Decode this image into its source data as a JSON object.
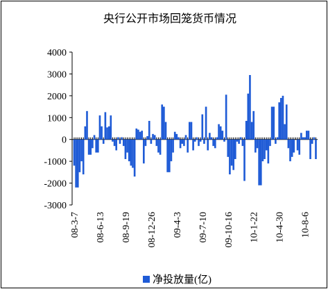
{
  "chart_data": {
    "type": "bar",
    "title": "央行公开市场回笼货币情况",
    "categories": [
      "08-3-7",
      null,
      null,
      null,
      null,
      null,
      null,
      null,
      null,
      null,
      null,
      null,
      null,
      null,
      "08-6-13",
      null,
      null,
      null,
      null,
      null,
      null,
      null,
      null,
      null,
      null,
      null,
      null,
      null,
      "08-9-19",
      null,
      null,
      null,
      null,
      null,
      null,
      null,
      null,
      null,
      null,
      null,
      null,
      null,
      "08-12-26",
      null,
      null,
      null,
      null,
      null,
      null,
      null,
      null,
      null,
      null,
      null,
      null,
      null,
      "09-4-3",
      null,
      null,
      null,
      null,
      null,
      null,
      null,
      null,
      null,
      null,
      null,
      null,
      null,
      "09-7-10",
      null,
      null,
      null,
      null,
      null,
      null,
      null,
      null,
      null,
      null,
      null,
      null,
      null,
      "09-10-16",
      null,
      null,
      null,
      null,
      null,
      null,
      null,
      null,
      null,
      null,
      null,
      null,
      null,
      "10-1-22",
      null,
      null,
      null,
      null,
      null,
      null,
      null,
      null,
      null,
      null,
      null,
      null,
      null,
      "10-4-30",
      null,
      null,
      null,
      null,
      null,
      null,
      null,
      null,
      null,
      null,
      null,
      null,
      null,
      "10-8-6",
      null,
      null,
      null,
      null,
      null,
      null
    ],
    "series": [
      {
        "name": "净投放量(亿)",
        "color": "#1f5bd6",
        "values": [
          -1200,
          -2200,
          -2200,
          -1500,
          -1000,
          -1600,
          600,
          1300,
          -700,
          -700,
          -400,
          200,
          -600,
          -600,
          1100,
          600,
          -200,
          1250,
          550,
          600,
          1100,
          -100,
          -300,
          -500,
          100,
          -200,
          100,
          -300,
          -900,
          -600,
          -1000,
          -1200,
          -1300,
          -1700,
          500,
          450,
          350,
          400,
          -1100,
          -300,
          150,
          850,
          -200,
          250,
          200,
          -300,
          -600,
          -700,
          1600,
          1500,
          800,
          -1500,
          -1500,
          -1000,
          -600,
          350,
          250,
          100,
          -400,
          -200,
          -300,
          200,
          -600,
          800,
          800,
          -500,
          -100,
          100,
          -300,
          -100,
          1150,
          -200,
          1500,
          -500,
          300,
          100,
          -300,
          -400,
          100,
          700,
          600,
          400,
          -100,
          2050,
          -800,
          -1600,
          -1200,
          -1400,
          -900,
          -100,
          -200,
          100,
          -300,
          -1900,
          850,
          2100,
          2950,
          800,
          1300,
          -600,
          -400,
          -2100,
          -2100,
          -1000,
          -900,
          -500,
          -1100,
          -300,
          1500,
          1500,
          -200,
          100,
          1700,
          1900,
          2000,
          700,
          1600,
          -400,
          -1000,
          -800,
          -600,
          0,
          -500,
          -700,
          300,
          100,
          100,
          400,
          400,
          -900,
          -200,
          100,
          -900
        ]
      }
    ],
    "ylim": [
      -3000,
      4000
    ],
    "yticks": [
      -3000,
      -2000,
      -1000,
      0,
      1000,
      2000,
      3000,
      4000
    ]
  }
}
